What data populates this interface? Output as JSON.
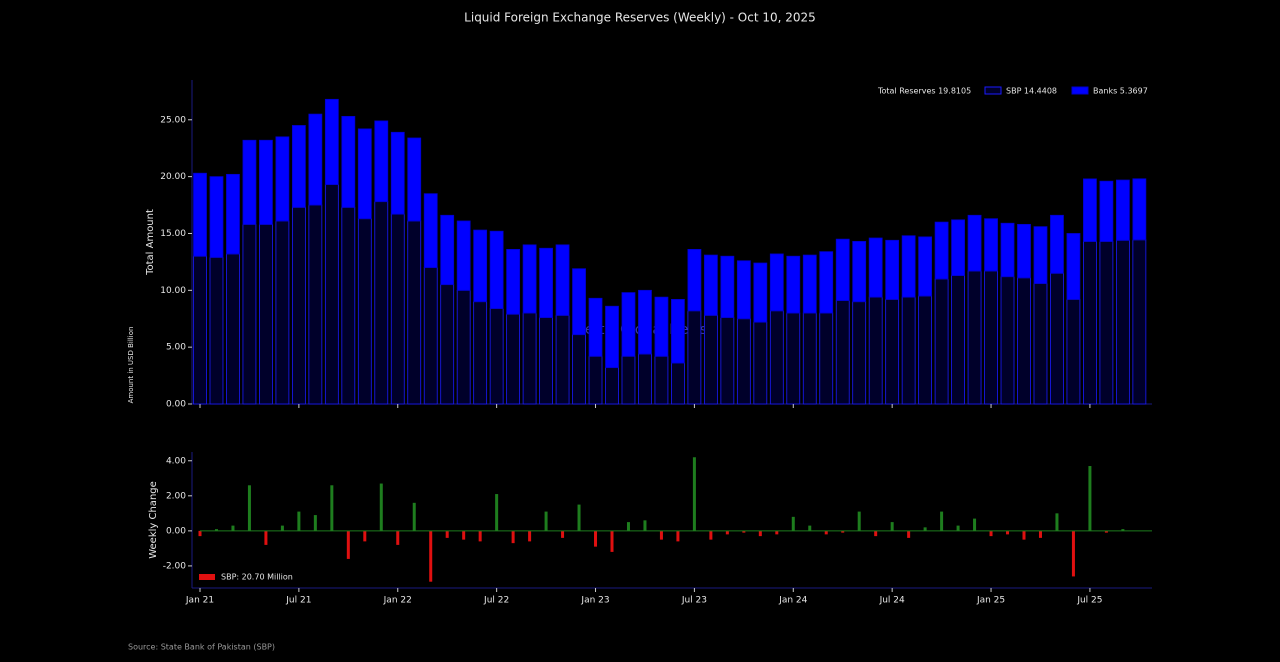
{
  "chart_data": [
    {
      "type": "stacked_bar",
      "title": "Liquid Foreign Exchange Reserves (Weekly) - Oct 10, 2025",
      "ylabel": "Total Amount",
      "ylabel2": "Amount in USD Billion",
      "watermark": "Mettis Global News",
      "total_label": "Total Reserves 19.8105",
      "ylim": [
        0,
        28.5
      ],
      "yticks": [
        {
          "value": 0,
          "label": "0.00"
        },
        {
          "value": 5,
          "label": "5.00"
        },
        {
          "value": 10,
          "label": "10.00"
        },
        {
          "value": 15,
          "label": "15.00"
        },
        {
          "value": 20,
          "label": "20.00"
        },
        {
          "value": 25,
          "label": "25.00"
        }
      ],
      "series": [
        {
          "name": "SBP 14.4408",
          "color": "#00002a",
          "edge_color": "#1a1aff",
          "values": [
            13.0,
            12.9,
            13.2,
            15.8,
            15.8,
            16.1,
            17.3,
            17.5,
            19.3,
            17.3,
            16.3,
            17.8,
            16.7,
            16.1,
            12.0,
            10.5,
            10.0,
            9.0,
            8.4,
            7.9,
            8.0,
            7.6,
            7.8,
            6.1,
            4.2,
            3.2,
            4.2,
            4.4,
            4.2,
            3.6,
            8.2,
            7.8,
            7.6,
            7.5,
            7.2,
            8.2,
            8.0,
            8.0,
            8.0,
            9.1,
            9.0,
            9.4,
            9.2,
            9.4,
            9.5,
            11.0,
            11.3,
            11.7,
            11.7,
            11.2,
            11.1,
            10.6,
            11.5,
            9.2,
            14.3,
            14.3,
            14.4,
            14.44
          ]
        },
        {
          "name": "Banks 5.3697",
          "color": "#0000ff",
          "edge_color": "#0000cc",
          "values": [
            7.3,
            7.1,
            7.0,
            7.4,
            7.4,
            7.4,
            7.2,
            8.0,
            7.5,
            8.0,
            7.9,
            7.1,
            7.2,
            7.3,
            6.5,
            6.1,
            6.1,
            6.3,
            6.8,
            5.7,
            6.0,
            6.1,
            6.2,
            5.8,
            5.1,
            5.4,
            5.6,
            5.6,
            5.2,
            5.6,
            5.4,
            5.3,
            5.4,
            5.1,
            5.2,
            5.0,
            5.0,
            5.1,
            5.4,
            5.4,
            5.3,
            5.2,
            5.2,
            5.4,
            5.2,
            5.0,
            4.9,
            4.9,
            4.6,
            4.7,
            4.7,
            5.0,
            5.1,
            5.8,
            5.5,
            5.3,
            5.3,
            5.37
          ]
        }
      ]
    },
    {
      "type": "bar",
      "ylabel": "Weekly Change",
      "categories": [
        "Jan 21",
        null,
        null,
        null,
        null,
        null,
        "Jul 21",
        null,
        null,
        null,
        null,
        null,
        "Jan 22",
        null,
        null,
        null,
        null,
        null,
        "Jul 22",
        null,
        null,
        null,
        null,
        null,
        "Jan 23",
        null,
        null,
        null,
        null,
        null,
        "Jul 23",
        null,
        null,
        null,
        null,
        null,
        "Jan 24",
        null,
        null,
        null,
        null,
        null,
        "Jul 24",
        null,
        null,
        null,
        null,
        null,
        "Jan 25",
        null,
        null,
        null,
        null,
        null,
        "Jul 25",
        null,
        null,
        null
      ],
      "ylim": [
        -3.26,
        4.5
      ],
      "yticks": [
        {
          "value": -2,
          "label": "-2.00"
        },
        {
          "value": 0,
          "label": "0.00"
        },
        {
          "value": 2,
          "label": "2.00"
        },
        {
          "value": 4,
          "label": "4.00"
        }
      ],
      "positive_color": "#1e7d1e",
      "negative_color": "#e01010",
      "series": [
        {
          "name": "SBP: 20.70 Million",
          "color": "#e01010",
          "values": [
            -0.3,
            0.1,
            0.3,
            2.6,
            -0.8,
            0.3,
            1.1,
            0.9,
            2.6,
            -1.6,
            -0.6,
            2.7,
            -0.8,
            1.6,
            -2.9,
            -0.4,
            -0.5,
            -0.6,
            2.1,
            -0.7,
            -0.6,
            1.1,
            -0.4,
            1.5,
            -0.9,
            -1.2,
            0.5,
            0.6,
            -0.5,
            -0.6,
            4.2,
            -0.5,
            -0.2,
            -0.1,
            -0.3,
            -0.2,
            0.8,
            0.3,
            -0.2,
            -0.1,
            1.1,
            -0.3,
            0.5,
            -0.4,
            0.2,
            1.1,
            0.3,
            0.7,
            -0.3,
            -0.2,
            -0.5,
            -0.4,
            1.0,
            -2.6,
            3.7,
            -0.1,
            0.1,
            0.02
          ]
        }
      ]
    }
  ],
  "source": "Source: State Bank of Pakistan (SBP)"
}
